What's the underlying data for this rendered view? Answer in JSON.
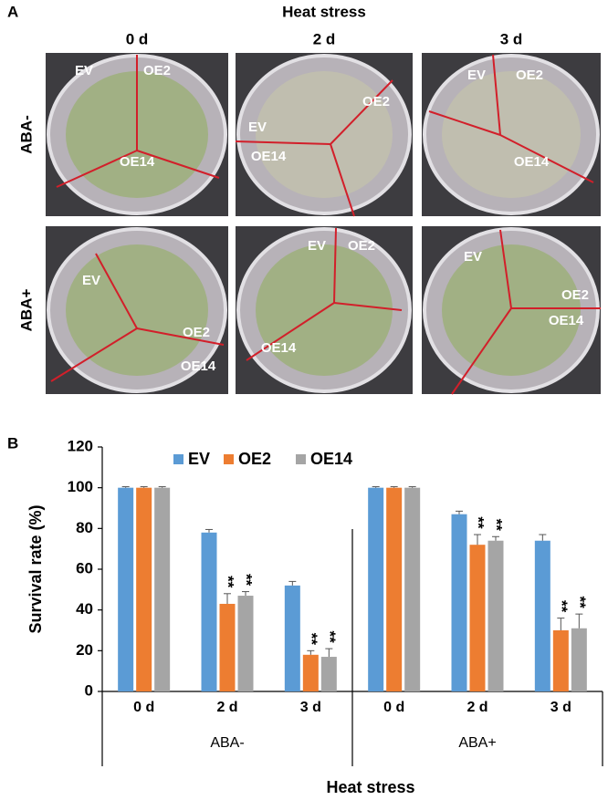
{
  "panel_a": {
    "label": "A",
    "title": "Heat stress",
    "columns": [
      "0 d",
      "2 d",
      "3 d"
    ],
    "rows": [
      "ABA-",
      "ABA+"
    ],
    "plates": [
      [
        "EV",
        "OE2",
        "OE14"
      ],
      [
        "EV",
        "OE2",
        "OE14"
      ],
      [
        "EV",
        "OE2",
        "OE14"
      ],
      [
        "EV",
        "OE2",
        "OE14"
      ],
      [
        "EV",
        "OE2",
        "OE14"
      ],
      [
        "EV",
        "OE2",
        "OE14"
      ]
    ]
  },
  "chart_data": {
    "type": "bar",
    "panel_label": "B",
    "categories": [
      "0 d",
      "2 d",
      "3 d",
      "0 d",
      "2 d",
      "3 d"
    ],
    "groups": [
      "ABA-",
      "ABA+"
    ],
    "series": [
      {
        "name": "EV",
        "color": "#5b9bd5",
        "values": [
          100,
          78,
          52,
          100,
          87,
          74
        ],
        "errors": [
          0.5,
          1.5,
          2,
          0.5,
          1.5,
          3
        ]
      },
      {
        "name": "OE2",
        "color": "#ed7d31",
        "values": [
          100,
          43,
          18,
          100,
          72,
          30
        ],
        "errors": [
          0.5,
          5,
          2,
          0.5,
          5,
          6
        ]
      },
      {
        "name": "OE14",
        "color": "#a5a5a5",
        "values": [
          100,
          47,
          17,
          100,
          74,
          31
        ],
        "errors": [
          0.5,
          2,
          4,
          0.5,
          2,
          7
        ]
      }
    ],
    "annotations": [
      {
        "series": 1,
        "index": 1,
        "text": "**"
      },
      {
        "series": 2,
        "index": 1,
        "text": "**"
      },
      {
        "series": 1,
        "index": 2,
        "text": "**"
      },
      {
        "series": 2,
        "index": 2,
        "text": "**"
      },
      {
        "series": 1,
        "index": 4,
        "text": "**"
      },
      {
        "series": 2,
        "index": 4,
        "text": "**"
      },
      {
        "series": 1,
        "index": 5,
        "text": "**"
      },
      {
        "series": 2,
        "index": 5,
        "text": "**"
      }
    ],
    "ylabel": "Survival rate (%)",
    "xlabel": "Heat stress",
    "ylim": [
      0,
      120
    ],
    "yticks": [
      0,
      20,
      40,
      60,
      80,
      100,
      120
    ],
    "legend": "top"
  }
}
